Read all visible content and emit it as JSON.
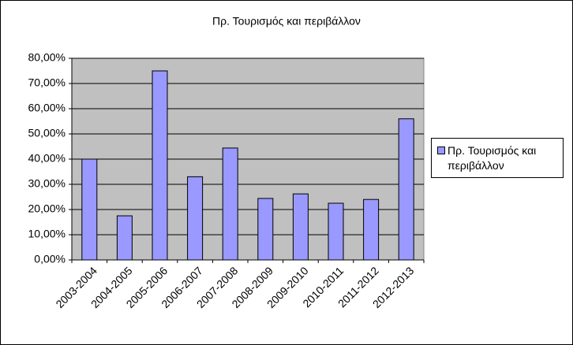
{
  "chart_data": {
    "type": "bar",
    "title": "Πρ. Τουρισμός και περιβάλλον",
    "categories": [
      "2003-2004",
      "2004-2005",
      "2005-2006",
      "2006-2007",
      "2007-2008",
      "2008-2009",
      "2009-2010",
      "2010-2011",
      "2011-2012",
      "2012-2013"
    ],
    "series": [
      {
        "name": "Πρ. Τουρισμός και περιβάλλον",
        "color": "#9999ff",
        "values": [
          40,
          17.5,
          75,
          33,
          44.4,
          24.4,
          26.2,
          22.5,
          24,
          56
        ]
      }
    ],
    "ylim": [
      0,
      80
    ],
    "yticks": [
      {
        "value": 0,
        "label": "0,00%"
      },
      {
        "value": 10,
        "label": "10,00%"
      },
      {
        "value": 20,
        "label": "20,00%"
      },
      {
        "value": 30,
        "label": "30,00%"
      },
      {
        "value": 40,
        "label": "40,00%"
      },
      {
        "value": 50,
        "label": "50,00%"
      },
      {
        "value": 60,
        "label": "60,00%"
      },
      {
        "value": 70,
        "label": "70,00%"
      },
      {
        "value": 80,
        "label": "80,00%"
      }
    ],
    "grid": true,
    "legend": "right"
  }
}
